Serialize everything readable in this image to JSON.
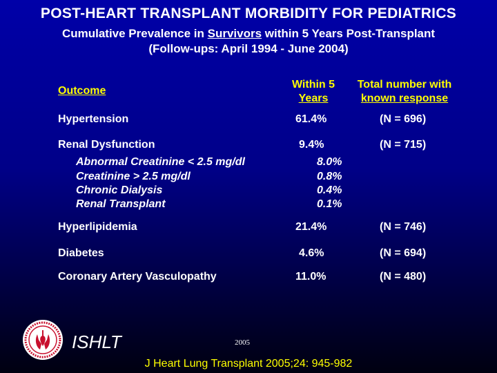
{
  "title": "POST-HEART TRANSPLANT MORBIDITY FOR PEDIATRICS",
  "subtitle_pre": "Cumulative Prevalence in ",
  "subtitle_underlined": "Survivors",
  "subtitle_post": " within 5 Years Post-Transplant",
  "subtitle_line2": "(Follow-ups: April 1994 - June 2004)",
  "headers": {
    "outcome": "Outcome",
    "within_line1": "Within 5",
    "within_line2": "Years",
    "total_line1": "Total number with",
    "total_line2": "known response"
  },
  "rows": [
    {
      "outcome": "Hypertension",
      "pct": "61.4%",
      "n": "(N = 696)"
    },
    {
      "outcome": "Renal Dysfunction",
      "pct": "9.4%",
      "n": "(N = 715)"
    },
    {
      "outcome": "Hyperlipidemia",
      "pct": "21.4%",
      "n": "(N = 746)"
    },
    {
      "outcome": "Diabetes",
      "pct": "4.6%",
      "n": "(N = 694)"
    },
    {
      "outcome": "Coronary Artery Vasculopathy",
      "pct": "11.0%",
      "n": "(N = 480)"
    }
  ],
  "renal_sub": [
    {
      "label": "Abnormal Creatinine < 2.5 mg/dl",
      "pct": "8.0%"
    },
    {
      "label": "Creatinine > 2.5 mg/dl",
      "pct": "0.8%"
    },
    {
      "label": "Chronic Dialysis",
      "pct": "0.4%"
    },
    {
      "label": "Renal Transplant",
      "pct": "0.1%"
    }
  ],
  "footer": {
    "logo_icon": "ishlt-seal-icon",
    "brand": "ISHLT",
    "year": "2005",
    "citation": "J Heart Lung Transplant 2005;24: 945-982"
  },
  "colors": {
    "header": "#ffff00",
    "text": "#ffffff",
    "background_top": "#0000a8",
    "background_bottom": "#000010",
    "logo_red": "#c8102e"
  }
}
